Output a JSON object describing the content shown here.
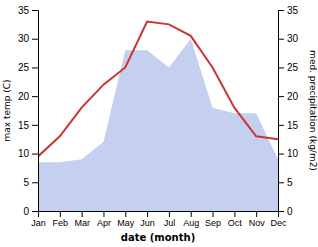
{
  "chart_data": {
    "type": "line",
    "categories": [
      "Jan",
      "Feb",
      "Mar",
      "Apr",
      "May",
      "Jun",
      "Jul",
      "Aug",
      "Sep",
      "Oct",
      "Nov",
      "Dec"
    ],
    "xlabel": "date (month)",
    "ylabel": "max temp (C)",
    "y2label": "med. precipitation (kg/m2)",
    "series": [
      {
        "type": "area",
        "axis": "y2",
        "color": "#c5d0f0",
        "values": [
          8.5,
          8.5,
          9.0,
          12.0,
          28.0,
          28.0,
          25.0,
          30.0,
          18.0,
          17.0,
          17.0,
          9.0
        ]
      },
      {
        "type": "line",
        "color": "#cc3333",
        "values": [
          9.5,
          13.0,
          18.0,
          22.0,
          25.0,
          33.0,
          32.5,
          30.5,
          25.0,
          18.0,
          13.0,
          12.5
        ]
      }
    ],
    "ylim": [
      0,
      35
    ],
    "yticks": [
      0,
      5,
      10,
      15,
      20,
      25,
      30,
      35
    ],
    "y2lim": [
      0,
      35
    ],
    "y2ticks": [
      0,
      5,
      10,
      15,
      20,
      25,
      30,
      35
    ],
    "grid": false
  }
}
